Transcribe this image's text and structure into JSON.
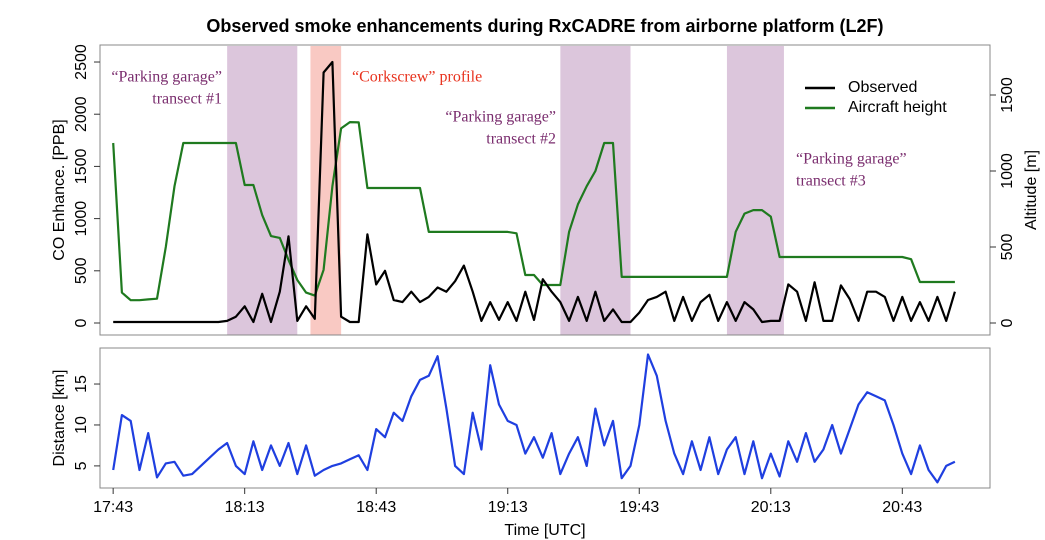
{
  "chart_data": [
    {
      "type": "line",
      "title": "Observed smoke enhancements during RxCADRE from airborne platform (L2F)",
      "ylabel": "CO Enhance. [PPB]",
      "y2label": "Altitude [m]",
      "legend": "topright",
      "xlim": [
        "17:40",
        "21:03"
      ],
      "ylim": [
        -115,
        2663
      ],
      "yticks": [
        0,
        500,
        1000,
        1500,
        2000,
        2500
      ],
      "y2lim": [
        -79,
        1829
      ],
      "y2ticks": [
        0,
        500,
        1000,
        1500
      ],
      "regions": [
        {
          "start": "18:09",
          "end": "18:25",
          "color": "#dcc6dc",
          "label_color": "#7a2d6e",
          "label": [
            "“Parking garage”",
            "transect #1"
          ]
        },
        {
          "start": "18:28",
          "end": "18:35",
          "color": "#f9c9c3",
          "label_color": "#e8321e",
          "label": [
            "“Corkscrew” profile"
          ]
        },
        {
          "start": "19:25",
          "end": "19:41",
          "color": "#dcc6dc",
          "label_color": "#7a2d6e",
          "label": [
            "“Parking garage”",
            "transect #2"
          ]
        },
        {
          "start": "20:03",
          "end": "20:16",
          "color": "#dcc6dc",
          "label_color": "#7a2d6e",
          "label": [
            "“Parking garage”",
            "transect #3"
          ]
        }
      ],
      "x": [
        "17:43",
        "17:45",
        "17:47",
        "17:49",
        "17:51",
        "17:53",
        "17:55",
        "17:57",
        "17:59",
        "18:01",
        "18:03",
        "18:05",
        "18:07",
        "18:09",
        "18:11",
        "18:13",
        "18:15",
        "18:17",
        "18:19",
        "18:21",
        "18:23",
        "18:25",
        "18:27",
        "18:29",
        "18:31",
        "18:33",
        "18:35",
        "18:37",
        "18:39",
        "18:41",
        "18:43",
        "18:45",
        "18:47",
        "18:49",
        "18:51",
        "18:53",
        "18:55",
        "18:57",
        "18:59",
        "19:01",
        "19:03",
        "19:05",
        "19:07",
        "19:09",
        "19:11",
        "19:13",
        "19:15",
        "19:17",
        "19:19",
        "19:21",
        "19:23",
        "19:25",
        "19:27",
        "19:29",
        "19:31",
        "19:33",
        "19:35",
        "19:37",
        "19:39",
        "19:41",
        "19:43",
        "19:45",
        "19:47",
        "19:49",
        "19:51",
        "19:53",
        "19:55",
        "19:57",
        "19:59",
        "20:01",
        "20:03",
        "20:05",
        "20:07",
        "20:09",
        "20:11",
        "20:13",
        "20:15",
        "20:17",
        "20:19",
        "20:21",
        "20:23",
        "20:25",
        "20:27",
        "20:29",
        "20:31",
        "20:33",
        "20:35",
        "20:37",
        "20:39",
        "20:41",
        "20:43",
        "20:45",
        "20:47",
        "20:49",
        "20:51",
        "20:53",
        "20:55"
      ],
      "series": [
        {
          "name": "Observed",
          "color": "#000000",
          "values": [
            10,
            10,
            10,
            10,
            10,
            10,
            10,
            10,
            10,
            10,
            10,
            10,
            10,
            20,
            60,
            160,
            10,
            280,
            10,
            300,
            830,
            20,
            160,
            40,
            2400,
            2500,
            60,
            10,
            10,
            850,
            370,
            500,
            220,
            200,
            300,
            200,
            250,
            340,
            300,
            400,
            550,
            300,
            20,
            200,
            30,
            200,
            20,
            300,
            30,
            420,
            300,
            200,
            20,
            250,
            20,
            300,
            20,
            130,
            10,
            10,
            100,
            220,
            250,
            300,
            20,
            250,
            20,
            200,
            270,
            20,
            200,
            20,
            200,
            130,
            10,
            20,
            20,
            370,
            300,
            20,
            390,
            20,
            20,
            360,
            230,
            20,
            300,
            300,
            250,
            20,
            250,
            20,
            200,
            20,
            250,
            20,
            300
          ]
        },
        {
          "name": "Aircraft height",
          "color": "#1f7a1f",
          "axis": "y2",
          "values": [
            1184,
            200,
            150,
            150,
            155,
            160,
            500,
            900,
            1184,
            1184,
            1184,
            1184,
            1184,
            1184,
            1184,
            908,
            908,
            710,
            572,
            560,
            415,
            283,
            200,
            180,
            350,
            900,
            1280,
            1322,
            1320,
            888,
            888,
            888,
            888,
            888,
            888,
            888,
            599,
            599,
            599,
            599,
            599,
            599,
            599,
            599,
            599,
            599,
            590,
            316,
            316,
            250,
            250,
            250,
            600,
            780,
            900,
            1000,
            1184,
            1184,
            303,
            303,
            303,
            303,
            303,
            303,
            303,
            303,
            303,
            303,
            303,
            303,
            303,
            600,
            720,
            743,
            743,
            700,
            434,
            434,
            434,
            434,
            434,
            434,
            434,
            434,
            434,
            434,
            434,
            434,
            434,
            434,
            434,
            420,
            270,
            270,
            270,
            270,
            270
          ]
        }
      ]
    },
    {
      "type": "line",
      "xlabel": "Time [UTC]",
      "ylabel": "Distance [km]",
      "color": "#1f3fe0",
      "xlim": [
        "17:40",
        "21:03"
      ],
      "xticks": [
        "17:43",
        "18:13",
        "18:43",
        "19:13",
        "19:43",
        "20:13",
        "20:43"
      ],
      "ylim": [
        2.3,
        19.4
      ],
      "yticks": [
        5,
        10,
        15
      ],
      "x": [
        "17:43",
        "17:45",
        "17:47",
        "17:49",
        "17:51",
        "17:53",
        "17:55",
        "17:57",
        "17:59",
        "18:01",
        "18:03",
        "18:05",
        "18:07",
        "18:09",
        "18:11",
        "18:13",
        "18:15",
        "18:17",
        "18:19",
        "18:21",
        "18:23",
        "18:25",
        "18:27",
        "18:29",
        "18:31",
        "18:33",
        "18:35",
        "18:37",
        "18:39",
        "18:41",
        "18:43",
        "18:45",
        "18:47",
        "18:49",
        "18:51",
        "18:53",
        "18:55",
        "18:57",
        "18:59",
        "19:01",
        "19:03",
        "19:05",
        "19:07",
        "19:09",
        "19:11",
        "19:13",
        "19:15",
        "19:17",
        "19:19",
        "19:21",
        "19:23",
        "19:25",
        "19:27",
        "19:29",
        "19:31",
        "19:33",
        "19:35",
        "19:37",
        "19:39",
        "19:41",
        "19:43",
        "19:45",
        "19:47",
        "19:49",
        "19:51",
        "19:53",
        "19:55",
        "19:57",
        "19:59",
        "20:01",
        "20:03",
        "20:05",
        "20:07",
        "20:09",
        "20:11",
        "20:13",
        "20:15",
        "20:17",
        "20:19",
        "20:21",
        "20:23",
        "20:25",
        "20:27",
        "20:29",
        "20:31",
        "20:33",
        "20:35",
        "20:37",
        "20:39",
        "20:41",
        "20:43",
        "20:45",
        "20:47",
        "20:49",
        "20:51",
        "20:53",
        "20:55"
      ],
      "values": [
        4.5,
        11.2,
        10.5,
        4.5,
        9.0,
        3.6,
        5.3,
        5.5,
        3.8,
        4.0,
        5.0,
        6.0,
        7.0,
        7.8,
        5.0,
        4.0,
        8.0,
        4.5,
        7.5,
        5.0,
        7.8,
        4.0,
        7.5,
        3.8,
        4.5,
        5.0,
        5.3,
        5.8,
        6.3,
        4.5,
        9.5,
        8.5,
        11.5,
        10.5,
        13.5,
        15.5,
        16.0,
        18.4,
        12.0,
        5.0,
        4.0,
        11.5,
        7.0,
        17.3,
        12.5,
        10.5,
        10.0,
        6.5,
        8.5,
        6.0,
        9.0,
        4.0,
        6.5,
        8.5,
        5.0,
        12.0,
        7.5,
        10.5,
        3.5,
        5.0,
        10.0,
        18.6,
        16.0,
        10.5,
        6.5,
        4.0,
        8.0,
        4.5,
        8.5,
        4.0,
        7.0,
        8.5,
        4.0,
        8.0,
        3.5,
        6.5,
        3.7,
        8.0,
        5.5,
        9.0,
        5.5,
        7.0,
        10.0,
        6.5,
        9.5,
        12.5,
        14.0,
        13.5,
        13.0,
        10.0,
        6.5,
        4.0,
        7.5,
        4.5,
        3.0,
        5.0,
        5.5
      ]
    }
  ]
}
